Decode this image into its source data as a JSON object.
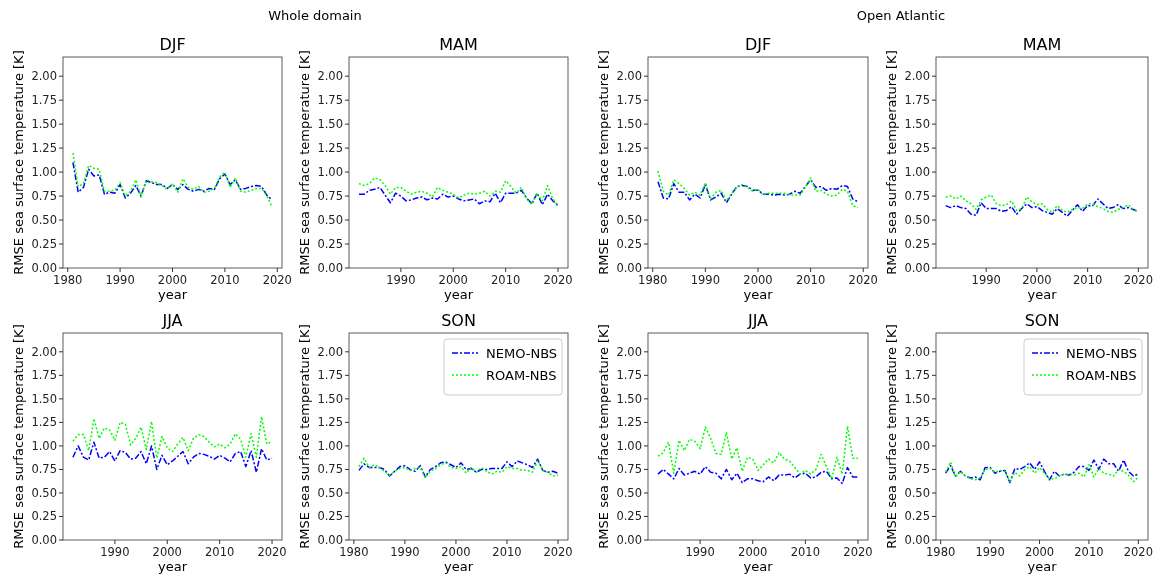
{
  "chart_data": [
    {
      "type": "line",
      "title": "DJF",
      "xlabel": "year",
      "ylabel": "RMSE sea surface temperature [K]",
      "annotations": [
        "Whole domain"
      ],
      "x": [
        1981,
        1982,
        1983,
        1984,
        1985,
        1986,
        1987,
        1988,
        1989,
        1990,
        1991,
        1992,
        1993,
        1994,
        1995,
        1996,
        1997,
        1998,
        1999,
        2000,
        2001,
        2002,
        2003,
        2004,
        2005,
        2006,
        2007,
        2008,
        2009,
        2010,
        2011,
        2012,
        2013,
        2014,
        2015,
        2016,
        2017,
        2018,
        2019
      ],
      "xlim": [
        1979.1,
        2020.9
      ],
      "xticks": [
        1980,
        1990,
        2000,
        2010,
        2020
      ],
      "ylim": [
        0,
        2.2
      ],
      "yticks": [
        {
          "value": 0,
          "label": "0.00"
        },
        {
          "value": 0.25,
          "label": "0.25"
        },
        {
          "value": 0.5,
          "label": "0.50"
        },
        {
          "value": 0.75,
          "label": "0.75"
        },
        {
          "value": 1,
          "label": "1.00"
        },
        {
          "value": 1.25,
          "label": "1.25"
        },
        {
          "value": 1.5,
          "label": "1.50"
        },
        {
          "value": 1.75,
          "label": "1.75"
        },
        {
          "value": 2,
          "label": "2.00"
        }
      ],
      "series": [
        {
          "color": "#0000ff",
          "line_style": "dashed",
          "values": [
            1.1,
            0.79,
            0.84,
            1.03,
            0.96,
            0.97,
            0.77,
            0.79,
            0.78,
            0.87,
            0.73,
            0.78,
            0.86,
            0.75,
            0.91,
            0.89,
            0.87,
            0.87,
            0.83,
            0.87,
            0.82,
            0.87,
            0.82,
            0.8,
            0.82,
            0.8,
            0.83,
            0.82,
            0.93,
            0.98,
            0.87,
            0.92,
            0.82,
            0.83,
            0.85,
            0.86,
            0.85,
            0.76,
            0.71
          ]
        },
        {
          "color": "#00ff00",
          "line_style": "dotted",
          "values": [
            1.2,
            0.85,
            0.88,
            1.07,
            1.04,
            1.03,
            0.8,
            0.8,
            0.81,
            0.89,
            0.75,
            0.8,
            0.92,
            0.74,
            0.92,
            0.9,
            0.89,
            0.86,
            0.82,
            0.88,
            0.79,
            0.93,
            0.84,
            0.82,
            0.85,
            0.79,
            0.8,
            0.83,
            0.95,
            1.0,
            0.84,
            0.94,
            0.8,
            0.79,
            0.81,
            0.83,
            0.83,
            0.75,
            0.64
          ]
        }
      ]
    },
    {
      "type": "line",
      "title": "MAM",
      "xlabel": "year",
      "ylabel": "RMSE sea surface temperature [K]",
      "x": [
        1982,
        1983,
        1984,
        1985,
        1986,
        1987,
        1988,
        1989,
        1990,
        1991,
        1992,
        1993,
        1994,
        1995,
        1996,
        1997,
        1998,
        1999,
        2000,
        2001,
        2002,
        2003,
        2004,
        2005,
        2006,
        2007,
        2008,
        2009,
        2010,
        2011,
        2012,
        2013,
        2014,
        2015,
        2016,
        2017,
        2018,
        2019,
        2020
      ],
      "xlim": [
        1980.1,
        2021.9
      ],
      "xticks": [
        1990,
        2000,
        2010,
        2020
      ],
      "ylim": [
        0,
        2.2
      ],
      "yticks": [
        {
          "value": 0,
          "label": "0.00"
        },
        {
          "value": 0.25,
          "label": "0.25"
        },
        {
          "value": 0.5,
          "label": "0.50"
        },
        {
          "value": 0.75,
          "label": "0.75"
        },
        {
          "value": 1,
          "label": "1.00"
        },
        {
          "value": 1.25,
          "label": "1.25"
        },
        {
          "value": 1.5,
          "label": "1.50"
        },
        {
          "value": 1.75,
          "label": "1.75"
        },
        {
          "value": 2,
          "label": "2.00"
        }
      ],
      "series": [
        {
          "color": "#0000ff",
          "line_style": "dashed",
          "values": [
            0.77,
            0.77,
            0.81,
            0.82,
            0.84,
            0.76,
            0.68,
            0.78,
            0.75,
            0.7,
            0.71,
            0.73,
            0.74,
            0.71,
            0.73,
            0.72,
            0.77,
            0.74,
            0.75,
            0.72,
            0.7,
            0.71,
            0.72,
            0.67,
            0.7,
            0.69,
            0.78,
            0.68,
            0.78,
            0.78,
            0.78,
            0.81,
            0.73,
            0.67,
            0.78,
            0.66,
            0.77,
            0.7,
            0.65
          ]
        },
        {
          "color": "#00ff00",
          "line_style": "dotted",
          "values": [
            0.88,
            0.86,
            0.88,
            0.94,
            0.92,
            0.86,
            0.77,
            0.84,
            0.84,
            0.8,
            0.77,
            0.79,
            0.8,
            0.78,
            0.74,
            0.84,
            0.81,
            0.79,
            0.77,
            0.73,
            0.76,
            0.78,
            0.77,
            0.78,
            0.8,
            0.75,
            0.8,
            0.79,
            0.91,
            0.85,
            0.78,
            0.84,
            0.72,
            0.66,
            0.78,
            0.7,
            0.86,
            0.72,
            0.65
          ]
        }
      ]
    },
    {
      "type": "line",
      "title": "DJF",
      "xlabel": "year",
      "ylabel": "RMSE sea surface temperature [K]",
      "annotations": [
        "Open Atlantic"
      ],
      "x": [
        1981,
        1982,
        1983,
        1984,
        1985,
        1986,
        1987,
        1988,
        1989,
        1990,
        1991,
        1992,
        1993,
        1994,
        1995,
        1996,
        1997,
        1998,
        1999,
        2000,
        2001,
        2002,
        2003,
        2004,
        2005,
        2006,
        2007,
        2008,
        2009,
        2010,
        2011,
        2012,
        2013,
        2014,
        2015,
        2016,
        2017,
        2018,
        2019
      ],
      "xlim": [
        1979.1,
        2020.9
      ],
      "xticks": [
        1980,
        1990,
        2000,
        2010,
        2020
      ],
      "ylim": [
        0,
        2.2
      ],
      "yticks": [
        {
          "value": 0,
          "label": "0.00"
        },
        {
          "value": 0.25,
          "label": "0.25"
        },
        {
          "value": 0.5,
          "label": "0.50"
        },
        {
          "value": 0.75,
          "label": "0.75"
        },
        {
          "value": 1,
          "label": "1.00"
        },
        {
          "value": 1.25,
          "label": "1.25"
        },
        {
          "value": 1.5,
          "label": "1.50"
        },
        {
          "value": 1.75,
          "label": "1.75"
        },
        {
          "value": 2,
          "label": "2.00"
        }
      ],
      "series": [
        {
          "color": "#0000ff",
          "line_style": "dashed",
          "values": [
            0.9,
            0.73,
            0.72,
            0.88,
            0.79,
            0.79,
            0.71,
            0.77,
            0.73,
            0.87,
            0.71,
            0.74,
            0.78,
            0.68,
            0.77,
            0.85,
            0.86,
            0.85,
            0.81,
            0.81,
            0.77,
            0.77,
            0.76,
            0.77,
            0.76,
            0.77,
            0.8,
            0.78,
            0.85,
            0.92,
            0.84,
            0.85,
            0.81,
            0.83,
            0.82,
            0.86,
            0.85,
            0.72,
            0.69
          ]
        },
        {
          "color": "#00ff00",
          "line_style": "dotted",
          "values": [
            1.01,
            0.8,
            0.76,
            0.92,
            0.88,
            0.83,
            0.76,
            0.79,
            0.76,
            0.89,
            0.72,
            0.79,
            0.81,
            0.7,
            0.78,
            0.84,
            0.87,
            0.84,
            0.8,
            0.82,
            0.76,
            0.78,
            0.78,
            0.78,
            0.78,
            0.76,
            0.76,
            0.76,
            0.84,
            0.94,
            0.8,
            0.81,
            0.77,
            0.75,
            0.76,
            0.82,
            0.8,
            0.65,
            0.63
          ]
        }
      ]
    },
    {
      "type": "line",
      "title": "MAM",
      "xlabel": "year",
      "ylabel": "RMSE sea surface temperature [K]",
      "x": [
        1982,
        1983,
        1984,
        1985,
        1986,
        1987,
        1988,
        1989,
        1990,
        1991,
        1992,
        1993,
        1994,
        1995,
        1996,
        1997,
        1998,
        1999,
        2000,
        2001,
        2002,
        2003,
        2004,
        2005,
        2006,
        2007,
        2008,
        2009,
        2010,
        2011,
        2012,
        2013,
        2014,
        2015,
        2016,
        2017,
        2018,
        2019,
        2020
      ],
      "xlim": [
        1980.1,
        2021.9
      ],
      "xticks": [
        1990,
        2000,
        2010,
        2020
      ],
      "ylim": [
        0,
        2.2
      ],
      "yticks": [
        {
          "value": 0,
          "label": "0.00"
        },
        {
          "value": 0.25,
          "label": "0.25"
        },
        {
          "value": 0.5,
          "label": "0.50"
        },
        {
          "value": 0.75,
          "label": "0.75"
        },
        {
          "value": 1,
          "label": "1.00"
        },
        {
          "value": 1.25,
          "label": "1.25"
        },
        {
          "value": 1.5,
          "label": "1.50"
        },
        {
          "value": 1.75,
          "label": "1.75"
        },
        {
          "value": 2,
          "label": "2.00"
        }
      ],
      "series": [
        {
          "color": "#0000ff",
          "line_style": "dashed",
          "values": [
            0.65,
            0.63,
            0.65,
            0.63,
            0.62,
            0.56,
            0.55,
            0.68,
            0.62,
            0.62,
            0.62,
            0.59,
            0.6,
            0.64,
            0.56,
            0.62,
            0.67,
            0.63,
            0.64,
            0.6,
            0.58,
            0.56,
            0.62,
            0.58,
            0.54,
            0.6,
            0.66,
            0.59,
            0.65,
            0.65,
            0.72,
            0.67,
            0.62,
            0.63,
            0.66,
            0.62,
            0.63,
            0.61,
            0.59
          ]
        },
        {
          "color": "#00ff00",
          "line_style": "dotted",
          "values": [
            0.74,
            0.75,
            0.72,
            0.75,
            0.7,
            0.67,
            0.61,
            0.71,
            0.74,
            0.76,
            0.67,
            0.65,
            0.66,
            0.7,
            0.6,
            0.62,
            0.74,
            0.69,
            0.66,
            0.67,
            0.61,
            0.58,
            0.65,
            0.6,
            0.58,
            0.61,
            0.63,
            0.62,
            0.67,
            0.67,
            0.64,
            0.62,
            0.59,
            0.58,
            0.61,
            0.63,
            0.66,
            0.61,
            0.58
          ]
        }
      ]
    },
    {
      "type": "line",
      "title": "JJA",
      "xlabel": "year",
      "ylabel": "RMSE sea surface temperature [K]",
      "x": [
        1982,
        1983,
        1984,
        1985,
        1986,
        1987,
        1988,
        1989,
        1990,
        1991,
        1992,
        1993,
        1994,
        1995,
        1996,
        1997,
        1998,
        1999,
        2000,
        2001,
        2002,
        2003,
        2004,
        2005,
        2006,
        2007,
        2008,
        2009,
        2010,
        2011,
        2012,
        2013,
        2014,
        2015,
        2016,
        2017,
        2018,
        2019,
        2020
      ],
      "xlim": [
        1980.1,
        2021.9
      ],
      "xticks": [
        1990,
        2000,
        2010,
        2020
      ],
      "ylim": [
        0,
        2.2
      ],
      "yticks": [
        {
          "value": 0,
          "label": "0.00"
        },
        {
          "value": 0.25,
          "label": "0.25"
        },
        {
          "value": 0.5,
          "label": "0.50"
        },
        {
          "value": 0.75,
          "label": "0.75"
        },
        {
          "value": 1,
          "label": "1.00"
        },
        {
          "value": 1.25,
          "label": "1.25"
        },
        {
          "value": 1.5,
          "label": "1.50"
        },
        {
          "value": 1.75,
          "label": "1.75"
        },
        {
          "value": 2,
          "label": "2.00"
        }
      ],
      "series": [
        {
          "color": "#0000ff",
          "line_style": "dashed",
          "values": [
            0.88,
            1.0,
            0.88,
            0.85,
            1.04,
            0.87,
            0.88,
            0.94,
            0.84,
            0.95,
            0.93,
            0.86,
            0.87,
            0.94,
            0.81,
            1.0,
            0.75,
            0.9,
            0.8,
            0.84,
            0.89,
            0.94,
            0.81,
            0.88,
            0.92,
            0.91,
            0.89,
            0.86,
            0.9,
            0.87,
            0.83,
            0.92,
            0.94,
            0.78,
            0.95,
            0.72,
            0.97,
            0.85,
            0.87
          ]
        },
        {
          "color": "#00ff00",
          "line_style": "dotted",
          "values": [
            1.05,
            1.12,
            1.12,
            0.95,
            1.29,
            1.08,
            1.19,
            1.17,
            1.06,
            1.25,
            1.23,
            1.01,
            1.08,
            1.2,
            0.96,
            1.26,
            0.87,
            1.1,
            0.98,
            0.94,
            1.02,
            1.09,
            0.95,
            1.08,
            1.12,
            1.1,
            1.04,
            0.99,
            1.02,
            0.98,
            1.02,
            1.13,
            1.07,
            0.88,
            1.13,
            0.88,
            1.31,
            1.02,
            1.05
          ]
        }
      ]
    },
    {
      "type": "line",
      "title": "SON",
      "xlabel": "year",
      "ylabel": "RMSE sea surface temperature [K]",
      "legend": "top right",
      "x": [
        1981,
        1982,
        1983,
        1984,
        1985,
        1986,
        1987,
        1988,
        1989,
        1990,
        1991,
        1992,
        1993,
        1994,
        1995,
        1996,
        1997,
        1998,
        1999,
        2000,
        2001,
        2002,
        2003,
        2004,
        2005,
        2006,
        2007,
        2008,
        2009,
        2010,
        2011,
        2012,
        2013,
        2014,
        2015,
        2016,
        2017,
        2018,
        2019,
        2020
      ],
      "xlim": [
        1979.05,
        2021.95
      ],
      "xticks": [
        1980,
        1990,
        2000,
        2010,
        2020
      ],
      "ylim": [
        0,
        2.2
      ],
      "yticks": [
        {
          "value": 0,
          "label": "0.00"
        },
        {
          "value": 0.25,
          "label": "0.25"
        },
        {
          "value": 0.5,
          "label": "0.50"
        },
        {
          "value": 0.75,
          "label": "0.75"
        },
        {
          "value": 1,
          "label": "1.00"
        },
        {
          "value": 1.25,
          "label": "1.25"
        },
        {
          "value": 1.5,
          "label": "1.50"
        },
        {
          "value": 1.75,
          "label": "1.75"
        },
        {
          "value": 2,
          "label": "2.00"
        }
      ],
      "series": [
        {
          "name": "NEMO-NBS",
          "color": "#0000ff",
          "line_style": "dashed",
          "values": [
            0.74,
            0.81,
            0.77,
            0.77,
            0.77,
            0.75,
            0.68,
            0.73,
            0.78,
            0.79,
            0.75,
            0.73,
            0.79,
            0.67,
            0.75,
            0.78,
            0.82,
            0.83,
            0.8,
            0.77,
            0.82,
            0.75,
            0.76,
            0.72,
            0.75,
            0.75,
            0.76,
            0.76,
            0.76,
            0.83,
            0.78,
            0.84,
            0.82,
            0.8,
            0.77,
            0.86,
            0.74,
            0.72,
            0.73,
            0.71
          ]
        },
        {
          "name": "ROAM-NBS",
          "color": "#00ff00",
          "line_style": "dotted",
          "values": [
            0.78,
            0.87,
            0.77,
            0.8,
            0.77,
            0.73,
            0.69,
            0.73,
            0.76,
            0.77,
            0.74,
            0.76,
            0.77,
            0.66,
            0.73,
            0.76,
            0.8,
            0.82,
            0.77,
            0.76,
            0.78,
            0.71,
            0.77,
            0.72,
            0.77,
            0.73,
            0.7,
            0.73,
            0.72,
            0.78,
            0.76,
            0.76,
            0.74,
            0.74,
            0.72,
            0.84,
            0.74,
            0.72,
            0.68,
            0.69
          ]
        }
      ]
    },
    {
      "type": "line",
      "title": "JJA",
      "xlabel": "year",
      "ylabel": "RMSE sea surface temperature [K]",
      "x": [
        1982,
        1983,
        1984,
        1985,
        1986,
        1987,
        1988,
        1989,
        1990,
        1991,
        1992,
        1993,
        1994,
        1995,
        1996,
        1997,
        1998,
        1999,
        2000,
        2001,
        2002,
        2003,
        2004,
        2005,
        2006,
        2007,
        2008,
        2009,
        2010,
        2011,
        2012,
        2013,
        2014,
        2015,
        2016,
        2017,
        2018,
        2019,
        2020
      ],
      "xlim": [
        1980.1,
        2021.9
      ],
      "xticks": [
        1990,
        2000,
        2010,
        2020
      ],
      "ylim": [
        0,
        2.2
      ],
      "yticks": [
        {
          "value": 0,
          "label": "0.00"
        },
        {
          "value": 0.25,
          "label": "0.25"
        },
        {
          "value": 0.5,
          "label": "0.50"
        },
        {
          "value": 0.75,
          "label": "0.75"
        },
        {
          "value": 1,
          "label": "1.00"
        },
        {
          "value": 1.25,
          "label": "1.25"
        },
        {
          "value": 1.5,
          "label": "1.50"
        },
        {
          "value": 1.75,
          "label": "1.75"
        },
        {
          "value": 2,
          "label": "2.00"
        }
      ],
      "series": [
        {
          "color": "#0000ff",
          "line_style": "dashed",
          "values": [
            0.7,
            0.75,
            0.7,
            0.65,
            0.76,
            0.69,
            0.71,
            0.73,
            0.7,
            0.78,
            0.72,
            0.71,
            0.65,
            0.75,
            0.64,
            0.71,
            0.61,
            0.65,
            0.65,
            0.63,
            0.62,
            0.67,
            0.63,
            0.69,
            0.69,
            0.7,
            0.66,
            0.7,
            0.71,
            0.66,
            0.67,
            0.72,
            0.73,
            0.65,
            0.66,
            0.6,
            0.77,
            0.67,
            0.67
          ]
        },
        {
          "color": "#00ff00",
          "line_style": "dotted",
          "values": [
            0.89,
            0.93,
            1.04,
            0.71,
            1.06,
            0.95,
            1.07,
            1.05,
            0.97,
            1.2,
            1.08,
            0.92,
            0.91,
            1.14,
            0.86,
            0.98,
            0.73,
            0.88,
            0.86,
            0.74,
            0.8,
            0.86,
            0.82,
            0.93,
            0.86,
            0.84,
            0.77,
            0.7,
            0.74,
            0.7,
            0.75,
            0.91,
            0.78,
            0.65,
            0.88,
            0.7,
            1.21,
            0.87,
            0.87
          ]
        }
      ]
    },
    {
      "type": "line",
      "title": "SON",
      "xlabel": "year",
      "ylabel": "RMSE sea surface temperature [K]",
      "legend": "top right",
      "x": [
        1981,
        1982,
        1983,
        1984,
        1985,
        1986,
        1987,
        1988,
        1989,
        1990,
        1991,
        1992,
        1993,
        1994,
        1995,
        1996,
        1997,
        1998,
        1999,
        2000,
        2001,
        2002,
        2003,
        2004,
        2005,
        2006,
        2007,
        2008,
        2009,
        2010,
        2011,
        2012,
        2013,
        2014,
        2015,
        2016,
        2017,
        2018,
        2019,
        2020
      ],
      "xlim": [
        1979.05,
        2021.95
      ],
      "xticks": [
        1980,
        1990,
        2000,
        2010,
        2020
      ],
      "ylim": [
        0,
        2.2
      ],
      "yticks": [
        {
          "value": 0,
          "label": "0.00"
        },
        {
          "value": 0.25,
          "label": "0.25"
        },
        {
          "value": 0.5,
          "label": "0.50"
        },
        {
          "value": 0.75,
          "label": "0.75"
        },
        {
          "value": 1,
          "label": "1.00"
        },
        {
          "value": 1.25,
          "label": "1.25"
        },
        {
          "value": 1.5,
          "label": "1.50"
        },
        {
          "value": 1.75,
          "label": "1.75"
        },
        {
          "value": 2,
          "label": "2.00"
        }
      ],
      "series": [
        {
          "name": "NEMO-NBS",
          "color": "#0000ff",
          "line_style": "dashed",
          "values": [
            0.71,
            0.79,
            0.68,
            0.73,
            0.68,
            0.66,
            0.67,
            0.64,
            0.77,
            0.77,
            0.71,
            0.73,
            0.74,
            0.61,
            0.76,
            0.75,
            0.78,
            0.82,
            0.75,
            0.83,
            0.73,
            0.64,
            0.73,
            0.68,
            0.7,
            0.69,
            0.72,
            0.78,
            0.78,
            0.74,
            0.85,
            0.75,
            0.86,
            0.81,
            0.81,
            0.73,
            0.85,
            0.73,
            0.68,
            0.7
          ]
        },
        {
          "name": "ROAM-NBS",
          "color": "#00ff00",
          "line_style": "dotted",
          "values": [
            0.72,
            0.83,
            0.67,
            0.73,
            0.68,
            0.65,
            0.64,
            0.66,
            0.75,
            0.76,
            0.72,
            0.74,
            0.73,
            0.62,
            0.72,
            0.68,
            0.75,
            0.78,
            0.71,
            0.77,
            0.71,
            0.65,
            0.65,
            0.68,
            0.7,
            0.7,
            0.69,
            0.71,
            0.67,
            0.8,
            0.67,
            0.76,
            0.71,
            0.7,
            0.68,
            0.75,
            0.73,
            0.69,
            0.62,
            0.67
          ]
        }
      ]
    }
  ]
}
